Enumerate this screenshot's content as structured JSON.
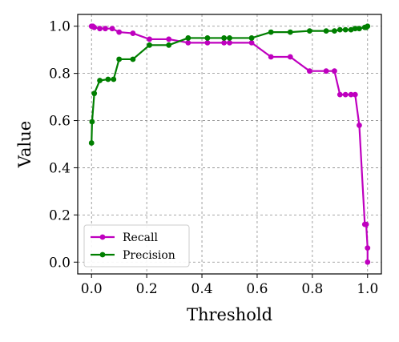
{
  "chart_data": {
    "type": "line",
    "title": "",
    "xlabel": "Threshold",
    "ylabel": "Value",
    "xlim": [
      -0.05,
      1.05
    ],
    "ylim": [
      -0.05,
      1.05
    ],
    "xticks": [
      0.0,
      0.2,
      0.4,
      0.6,
      0.8,
      1.0
    ],
    "yticks": [
      0.0,
      0.2,
      0.4,
      0.6,
      0.8,
      1.0
    ],
    "xtick_labels": [
      "0.0",
      "0.2",
      "0.4",
      "0.6",
      "0.8",
      "1.0"
    ],
    "ytick_labels": [
      "0.0",
      "0.2",
      "0.4",
      "0.6",
      "0.8",
      "1.0"
    ],
    "grid": true,
    "legend_position": "lower-left",
    "series": [
      {
        "name": "Recall",
        "color": "#bf00bf",
        "x": [
          0.0,
          0.005,
          0.01,
          0.03,
          0.05,
          0.075,
          0.1,
          0.15,
          0.21,
          0.28,
          0.35,
          0.42,
          0.48,
          0.5,
          0.58,
          0.65,
          0.72,
          0.79,
          0.85,
          0.88,
          0.9,
          0.92,
          0.94,
          0.955,
          0.97,
          0.99,
          0.995,
          1.0,
          1.0
        ],
        "y": [
          1.0,
          1.0,
          0.995,
          0.99,
          0.99,
          0.99,
          0.975,
          0.97,
          0.945,
          0.945,
          0.93,
          0.93,
          0.93,
          0.93,
          0.93,
          0.87,
          0.87,
          0.81,
          0.81,
          0.81,
          0.71,
          0.71,
          0.71,
          0.71,
          0.58,
          0.16,
          0.16,
          0.06,
          0.0
        ]
      },
      {
        "name": "Precision",
        "color": "#007f00",
        "x": [
          0.0,
          0.002,
          0.01,
          0.03,
          0.06,
          0.08,
          0.1,
          0.15,
          0.21,
          0.28,
          0.35,
          0.42,
          0.48,
          0.5,
          0.58,
          0.65,
          0.72,
          0.79,
          0.85,
          0.88,
          0.9,
          0.92,
          0.94,
          0.955,
          0.97,
          0.99,
          0.995,
          1.0
        ],
        "y": [
          0.505,
          0.595,
          0.715,
          0.77,
          0.775,
          0.775,
          0.86,
          0.86,
          0.92,
          0.92,
          0.95,
          0.95,
          0.95,
          0.95,
          0.95,
          0.975,
          0.975,
          0.98,
          0.98,
          0.98,
          0.985,
          0.985,
          0.985,
          0.99,
          0.99,
          0.995,
          0.995,
          1.0
        ]
      }
    ]
  }
}
